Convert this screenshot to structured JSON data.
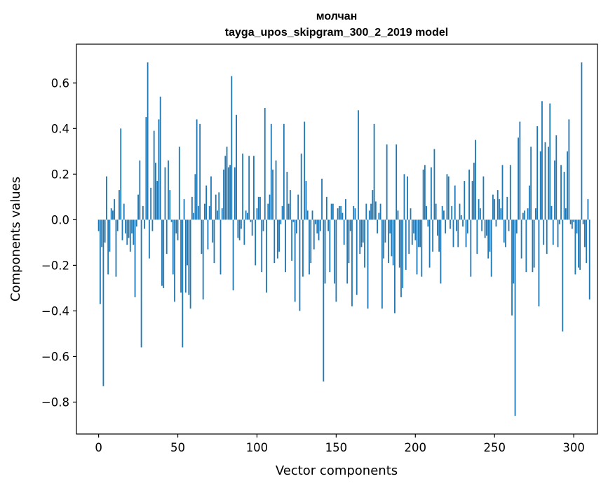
{
  "chart_data": {
    "type": "bar",
    "title": "молчан",
    "subtitle": "tayga_upos_skipgram_300_2_2019 model",
    "xlabel": "Vector components",
    "ylabel": "Components values",
    "xlim": [
      -14,
      315
    ],
    "ylim": [
      -0.94,
      0.77
    ],
    "xticks": [
      0,
      50,
      100,
      150,
      200,
      250,
      300
    ],
    "xtick_labels": [
      "0",
      "50",
      "100",
      "150",
      "200",
      "250",
      "300"
    ],
    "yticks": [
      -0.8,
      -0.6,
      -0.4,
      -0.2,
      0.0,
      0.2,
      0.4,
      0.6
    ],
    "ytick_labels": [
      "−0.8",
      "−0.6",
      "−0.4",
      "−0.2",
      "0.0",
      "0.2",
      "0.4",
      "0.6"
    ],
    "bar_color": "#1f77b4",
    "series": [
      {
        "name": "молчан",
        "values": [
          -0.05,
          -0.37,
          -0.12,
          -0.73,
          -0.1,
          0.19,
          -0.24,
          -0.14,
          0.05,
          0.04,
          0.09,
          -0.25,
          -0.05,
          0.13,
          0.4,
          -0.09,
          0.07,
          -0.06,
          -0.11,
          -0.08,
          -0.14,
          -0.06,
          -0.11,
          -0.34,
          -0.03,
          0.11,
          0.26,
          -0.56,
          0.06,
          -0.04,
          0.45,
          0.69,
          -0.17,
          0.14,
          -0.05,
          0.39,
          0.25,
          0.17,
          0.44,
          0.54,
          -0.29,
          -0.3,
          0.23,
          -0.15,
          0.26,
          0.13,
          -0.01,
          -0.24,
          -0.36,
          -0.06,
          -0.09,
          0.32,
          -0.32,
          -0.56,
          0.09,
          -0.32,
          -0.2,
          -0.33,
          -0.39,
          0.1,
          0.03,
          0.2,
          0.44,
          0.06,
          0.42,
          -0.15,
          -0.35,
          0.07,
          0.15,
          -0.13,
          0.06,
          0.19,
          -0.1,
          -0.19,
          0.11,
          0.04,
          0.12,
          -0.24,
          0.05,
          0.22,
          0.28,
          0.32,
          0.23,
          0.24,
          0.63,
          -0.31,
          0.23,
          0.46,
          -0.08,
          -0.09,
          -0.04,
          0.29,
          -0.11,
          0.04,
          0.03,
          0.28,
          -0.01,
          -0.07,
          0.28,
          -0.2,
          0.05,
          0.1,
          0.1,
          -0.23,
          -0.05,
          0.49,
          -0.32,
          0.07,
          0.11,
          0.42,
          0.22,
          -0.19,
          0.26,
          -0.17,
          -0.14,
          -0.02,
          0.06,
          0.42,
          -0.23,
          0.21,
          0.07,
          0.13,
          -0.18,
          -0.01,
          -0.36,
          -0.06,
          0.11,
          -0.4,
          0.29,
          -0.25,
          0.43,
          0.17,
          0.04,
          -0.24,
          -0.19,
          0.04,
          -0.13,
          -0.02,
          -0.06,
          -0.09,
          -0.05,
          0.18,
          -0.71,
          -0.28,
          0.1,
          -0.05,
          -0.23,
          0.07,
          0.07,
          -0.28,
          -0.36,
          0.05,
          0.06,
          0.06,
          0.03,
          -0.11,
          0.09,
          -0.28,
          -0.19,
          -0.05,
          -0.38,
          0.06,
          0.05,
          -0.33,
          0.48,
          -0.15,
          -0.12,
          -0.1,
          -0.21,
          0.07,
          -0.39,
          0.04,
          0.07,
          0.13,
          0.42,
          0.08,
          -0.06,
          0.03,
          0.07,
          -0.39,
          -0.17,
          -0.1,
          0.33,
          -0.19,
          -0.06,
          -0.16,
          -0.2,
          -0.41,
          0.33,
          0.04,
          -0.21,
          -0.34,
          -0.3,
          0.2,
          -0.22,
          0.19,
          -0.15,
          0.05,
          -0.11,
          -0.06,
          -0.09,
          -0.24,
          -0.12,
          -0.12,
          -0.25,
          0.22,
          0.24,
          0.06,
          -0.03,
          -0.21,
          0.23,
          -0.14,
          0.31,
          0.07,
          -0.07,
          -0.14,
          -0.28,
          0.06,
          0.04,
          -0.06,
          0.2,
          0.19,
          -0.04,
          0.06,
          -0.12,
          0.15,
          -0.05,
          -0.12,
          0.07,
          0.02,
          -0.03,
          0.17,
          -0.12,
          -0.06,
          0.22,
          -0.25,
          0.17,
          0.25,
          0.35,
          -0.15,
          0.09,
          0.05,
          -0.05,
          0.19,
          -0.08,
          -0.07,
          -0.17,
          -0.14,
          -0.25,
          0.11,
          0.09,
          -0.03,
          0.13,
          0.09,
          0.05,
          0.24,
          -0.1,
          -0.12,
          0.1,
          -0.05,
          0.24,
          -0.42,
          -0.28,
          -0.86,
          -0.06,
          0.36,
          0.43,
          -0.17,
          0.03,
          0.04,
          -0.23,
          0.05,
          0.15,
          0.32,
          -0.23,
          -0.21,
          0.05,
          0.41,
          -0.38,
          0.3,
          0.52,
          -0.11,
          0.34,
          -0.15,
          0.32,
          0.51,
          0.06,
          -0.11,
          0.26,
          0.37,
          -0.12,
          -0.02,
          0.24,
          -0.49,
          0.21,
          0.05,
          0.3,
          0.44,
          -0.02,
          -0.04,
          -0.01,
          -0.24,
          -0.06,
          -0.21,
          -0.22,
          0.69,
          -0.02,
          -0.12,
          -0.19,
          0.09,
          -0.35
        ]
      }
    ]
  }
}
